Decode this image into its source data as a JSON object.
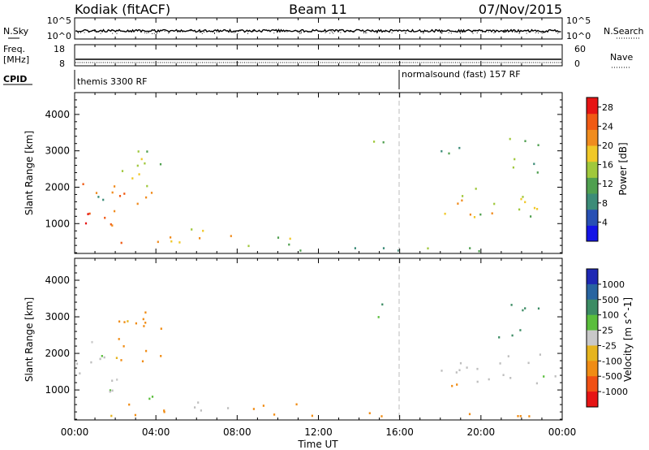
{
  "header": {
    "station": "Kodiak (fitACF)",
    "beam": "Beam 11",
    "date": "07/Nov/2015"
  },
  "top_panels": {
    "nsky_label": "N.Sky",
    "nsky_ticks": [
      "10^5",
      "10^0"
    ],
    "nsearch_label": "N.Search",
    "nsearch_ticks": [
      "10^5",
      "10^0"
    ],
    "freq_label_1": "Freq.",
    "freq_label_2": "[MHz]",
    "freq_ticks": [
      "18",
      "8"
    ],
    "nave_label": "Nave",
    "nave_ticks": [
      "60",
      "0"
    ],
    "cpid_label": "CPID",
    "cpid_segments": [
      "themis 3300 RF",
      "normalsound (fast) 157 RF"
    ]
  },
  "x_axis": {
    "label": "Time UT",
    "ticks": [
      "00:00",
      "04:00",
      "08:00",
      "12:00",
      "16:00",
      "20:00",
      "00:00"
    ]
  },
  "power_panel": {
    "ylabel": "Slant Range [km]",
    "yticks": [
      "1000",
      "2000",
      "3000",
      "4000"
    ],
    "colorbar_label": "Power [dB]",
    "colorbar_ticks": [
      "4",
      "8",
      "12",
      "16",
      "20",
      "24",
      "28"
    ]
  },
  "velocity_panel": {
    "ylabel": "Slant Range [km]",
    "yticks": [
      "1000",
      "2000",
      "3000",
      "4000"
    ],
    "colorbar_label": "Velocity [m s^-1]",
    "colorbar_ticks": [
      "1000",
      "500",
      "100",
      "25",
      "-25",
      "-100",
      "-500",
      "-1000"
    ]
  },
  "colors": {
    "power_scale": [
      "#1414e6",
      "#2850b4",
      "#3c8c78",
      "#50a050",
      "#a0c83c",
      "#f0c828",
      "#f08c1e",
      "#f05a14",
      "#e61414"
    ],
    "velocity_scale": [
      "#1e28b4",
      "#2864a0",
      "#3c8c64",
      "#5abe3c",
      "#c8c8c8",
      "#e6b41e",
      "#f08c14",
      "#f05014",
      "#e61414"
    ],
    "ground_scatter": "#bebebe"
  },
  "chart_data": [
    {
      "type": "heatmap",
      "name": "power",
      "xlabel": "Time UT",
      "ylabel": "Slant Range [km]",
      "xlim": [
        0,
        24
      ],
      "ylim": [
        180,
        4600
      ],
      "colorbar": {
        "label": "Power [dB]",
        "range": [
          0,
          30
        ]
      },
      "regions": [
        {
          "t0": 0.0,
          "t1": 2.2,
          "r0": 700,
          "r1": 2300,
          "level": 24
        },
        {
          "t0": 2.0,
          "t1": 3.8,
          "r0": 1500,
          "r1": 2300,
          "level": 20
        },
        {
          "t0": 2.3,
          "t1": 4.3,
          "r0": 2100,
          "r1": 3400,
          "level": 16
        },
        {
          "t0": 0.6,
          "t1": 1.4,
          "r0": 1500,
          "r1": 2400,
          "level": 9
        },
        {
          "t0": 1.5,
          "t1": 5.5,
          "r0": 300,
          "r1": 650,
          "level": 22
        },
        {
          "t0": 5.5,
          "t1": 8.0,
          "r0": 400,
          "r1": 900,
          "level": 20
        },
        {
          "t0": 8.5,
          "t1": 11.0,
          "r0": 280,
          "r1": 700,
          "level": 12
        },
        {
          "t0": 11.0,
          "t1": 24.0,
          "r0": 250,
          "r1": 400,
          "level": 10
        },
        {
          "t0": 14.6,
          "t1": 15.4,
          "r0": 2900,
          "r1": 3600,
          "level": 10
        },
        {
          "t0": 17.4,
          "t1": 23.9,
          "r0": 1200,
          "r1": 2000,
          "level": 17
        },
        {
          "t0": 17.5,
          "t1": 19.0,
          "r0": 2800,
          "r1": 3300,
          "level": 8
        },
        {
          "t0": 20.8,
          "t1": 22.8,
          "r0": 2400,
          "r1": 3400,
          "level": 12
        }
      ]
    },
    {
      "type": "heatmap",
      "name": "velocity",
      "xlabel": "Time UT",
      "ylabel": "Slant Range [km]",
      "xlim": [
        0,
        24
      ],
      "ylim": [
        180,
        4600
      ],
      "colorbar": {
        "label": "Velocity [m s^-1]",
        "range": [
          -1000,
          1000
        ]
      },
      "regions": [
        {
          "t0": 0.0,
          "t1": 2.2,
          "r0": 700,
          "r1": 2200,
          "velocity": 0
        },
        {
          "t0": 2.0,
          "t1": 4.3,
          "r0": 1500,
          "r1": 3400,
          "velocity": -150
        },
        {
          "t0": 0.6,
          "t1": 1.4,
          "r0": 1500,
          "r1": 2400,
          "velocity": 60
        },
        {
          "t0": 1.5,
          "t1": 5.5,
          "r0": 300,
          "r1": 650,
          "velocity": -120
        },
        {
          "t0": 3.5,
          "t1": 5.5,
          "r0": 600,
          "r1": 900,
          "velocity": 80
        },
        {
          "t0": 5.5,
          "t1": 8.0,
          "r0": 400,
          "r1": 900,
          "velocity": 0
        },
        {
          "t0": 8.5,
          "t1": 11.0,
          "r0": 280,
          "r1": 700,
          "velocity": -200
        },
        {
          "t0": 11.0,
          "t1": 24.0,
          "r0": 250,
          "r1": 400,
          "velocity": -120
        },
        {
          "t0": 14.6,
          "t1": 15.4,
          "r0": 2900,
          "r1": 3600,
          "velocity": 120
        },
        {
          "t0": 17.4,
          "t1": 23.9,
          "r0": 1200,
          "r1": 2000,
          "velocity": 0
        },
        {
          "t0": 18.5,
          "t1": 19.5,
          "r0": 700,
          "r1": 1200,
          "velocity": -150
        },
        {
          "t0": 20.8,
          "t1": 22.8,
          "r0": 2400,
          "r1": 3400,
          "velocity": 150
        }
      ]
    }
  ]
}
